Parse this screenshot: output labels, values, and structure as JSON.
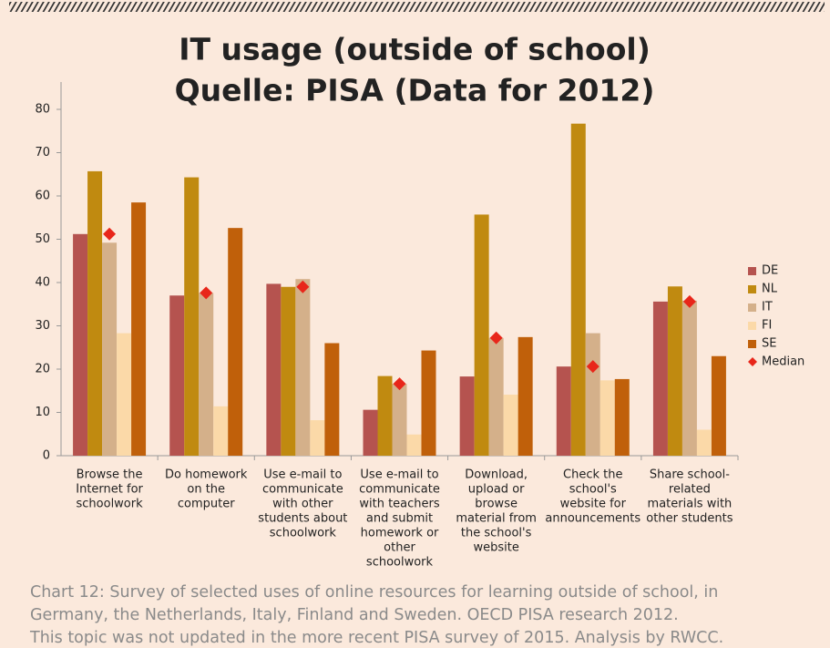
{
  "chart_data": {
    "type": "bar",
    "title": "IT usage (outside of school)",
    "subtitle": "Quelle: PISA (Data for 2012)",
    "categories": [
      [
        "Browse the",
        "Internet for",
        "schoolwork"
      ],
      [
        "Do homework",
        "on the",
        "computer"
      ],
      [
        "Use e-mail to",
        "communicate",
        "with other",
        "students about",
        "schoolwork"
      ],
      [
        "Use e-mail to",
        "communicate",
        "with teachers",
        "and submit",
        "homework or",
        "other",
        "schoolwork"
      ],
      [
        "Download,",
        "upload or",
        "browse",
        "material from",
        "the school's",
        "website"
      ],
      [
        "Check the",
        "school's",
        "website for",
        "announcements"
      ],
      [
        "Share school-",
        "related",
        "materials with",
        "other students"
      ]
    ],
    "series": [
      {
        "name": "DE",
        "color": "#b5534f",
        "values": [
          51.2,
          37,
          39.7,
          10.6,
          18.3,
          20.6,
          35.6
        ]
      },
      {
        "name": "NL",
        "color": "#c08a10",
        "values": [
          65.7,
          64.3,
          39,
          18.4,
          55.7,
          76.7,
          39.1
        ]
      },
      {
        "name": "IT",
        "color": "#d4b08a",
        "values": [
          49.2,
          37.6,
          40.8,
          16.6,
          27.2,
          28.3,
          35.8
        ]
      },
      {
        "name": "FI",
        "color": "#fbd9a8",
        "values": [
          28.3,
          11.4,
          8.2,
          4.9,
          14.1,
          17.4,
          6
        ]
      },
      {
        "name": "SE",
        "color": "#c0600a",
        "values": [
          58.5,
          52.6,
          26,
          24.3,
          27.4,
          17.7,
          23
        ]
      },
      {
        "name": "Median",
        "color": "#e8261a",
        "marker": "diamond",
        "values": [
          51.2,
          37.6,
          39,
          16.6,
          27.2,
          20.6,
          35.6
        ]
      }
    ],
    "ylim": [
      0,
      80
    ],
    "yticks": [
      0,
      10,
      20,
      30,
      40,
      50,
      60,
      70,
      80
    ],
    "grid": false,
    "legend": "right",
    "caption": [
      "Chart 12: Survey of selected uses of online resources for learning outside of school, in",
      "Germany, the Netherlands, Italy, Finland and Sweden. OECD PISA research 2012.",
      "This topic was not updated in the more recent PISA survey of 2015. Analysis by RWCC."
    ]
  }
}
